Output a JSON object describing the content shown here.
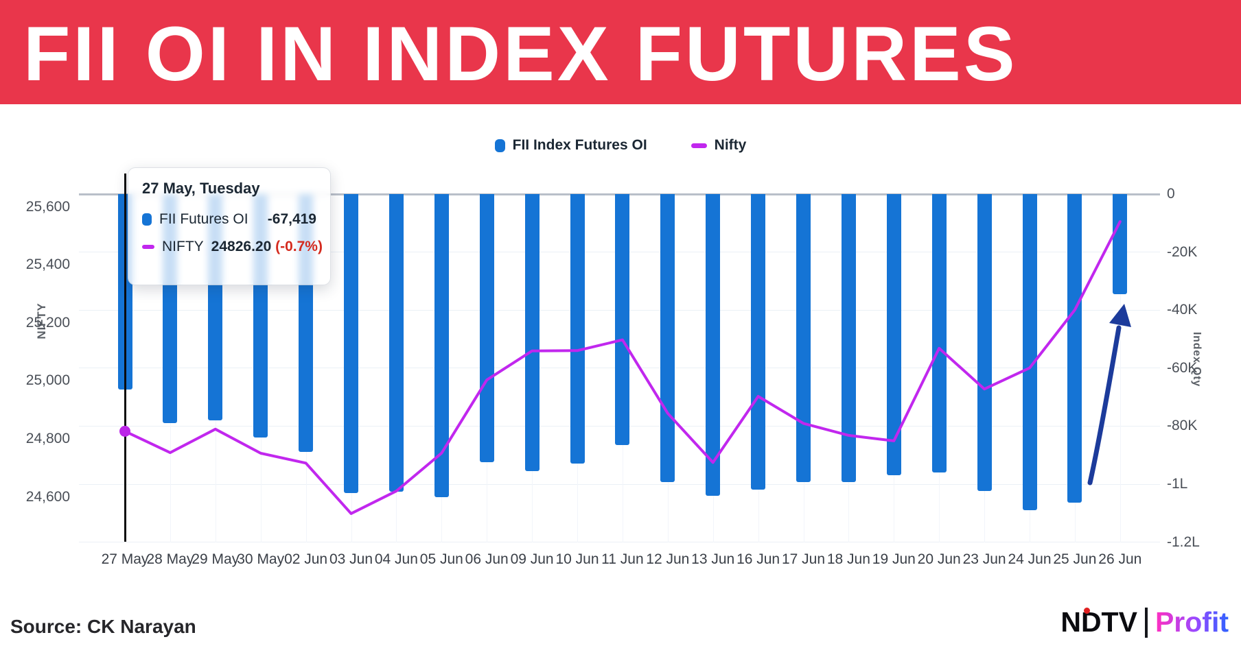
{
  "banner": {
    "title": "FII OI IN INDEX FUTURES",
    "bg_color": "#E9364B",
    "text_color": "#FFFFFF"
  },
  "legend": [
    {
      "label": "FII Index Futures OI",
      "swatch": "bar",
      "color": "#1574D5"
    },
    {
      "label": "Nifty",
      "swatch": "line",
      "color": "#C127EE"
    }
  ],
  "tooltip": {
    "title": "27 May, Tuesday",
    "rows": [
      {
        "swatch": "bar",
        "color": "#1574D5",
        "label": "FII Futures OI",
        "value": "-67,419",
        "extra": "",
        "extra_color": ""
      },
      {
        "swatch": "line",
        "color": "#C127EE",
        "label": "NIFTY",
        "value": "24826.20",
        "extra": " (-0.7%)",
        "extra_color": "#D42A1E"
      }
    ]
  },
  "chart_data": {
    "type": "bar+line",
    "categories": [
      "27 May",
      "28 May",
      "29 May",
      "30 May",
      "02 Jun",
      "03 Jun",
      "04 Jun",
      "05 Jun",
      "06 Jun",
      "09 Jun",
      "10 Jun",
      "11 Jun",
      "12 Jun",
      "13 Jun",
      "16 Jun",
      "17 Jun",
      "18 Jun",
      "19 Jun",
      "20 Jun",
      "23 Jun",
      "24 Jun",
      "25 Jun",
      "26 Jun"
    ],
    "series": [
      {
        "name": "FII Index Futures OI",
        "type": "bar",
        "axis": "right",
        "color": "#1574D5",
        "values": [
          -67419,
          -79000,
          -78000,
          -84000,
          -89000,
          -103000,
          -102500,
          -104500,
          -92500,
          -95500,
          -93000,
          -86500,
          -99400,
          -104000,
          -101800,
          -99400,
          -99200,
          -97000,
          -96000,
          -102300,
          -109000,
          -106400,
          -34500
        ]
      },
      {
        "name": "Nifty",
        "type": "line",
        "axis": "left",
        "color": "#C127EE",
        "first_point_dot": true,
        "values": [
          24826.2,
          24752.45,
          24833.6,
          24750.7,
          24716.6,
          24542.5,
          24620.2,
          24750.9,
          25003.05,
          25103.2,
          25104.25,
          25141.4,
          24888.2,
          24718.6,
          24946.5,
          24853.4,
          24812.05,
          24793.25,
          25112.4,
          24971.9,
          25044.35,
          25244.75,
          25549.0
        ]
      }
    ],
    "left_axis": {
      "label": "NIFTY",
      "ticks": [
        {
          "label": "25,600",
          "value": 25600
        },
        {
          "label": "25,400",
          "value": 25400
        },
        {
          "label": "25,200",
          "value": 25200
        },
        {
          "label": "25,000",
          "value": 25000
        },
        {
          "label": "24,800",
          "value": 24800
        },
        {
          "label": "24,600",
          "value": 24600
        }
      ]
    },
    "right_axis": {
      "label": "Index Qty",
      "ticks": [
        {
          "label": "0",
          "value": 0
        },
        {
          "label": "-20K",
          "value": -20000
        },
        {
          "label": "-40K",
          "value": -40000
        },
        {
          "label": "-60K",
          "value": -60000
        },
        {
          "label": "-80K",
          "value": -80000
        },
        {
          "label": "-1L",
          "value": -100000
        },
        {
          "label": "-1.2L",
          "value": -120000
        }
      ]
    },
    "title": "FII OI IN INDEX FUTURES",
    "grid": true,
    "legend_position": "top-center",
    "annotations": [
      {
        "type": "arrow",
        "direction": "up",
        "color": "#1C3B9B",
        "near_category": "26 Jun"
      },
      {
        "type": "crosshair",
        "at_category": "27 May"
      }
    ]
  },
  "footer": {
    "source": "Source: CK Narayan"
  },
  "logo": {
    "ndtv": "NDTV",
    "profit": "Profit",
    "dot_color": "#E02020"
  }
}
